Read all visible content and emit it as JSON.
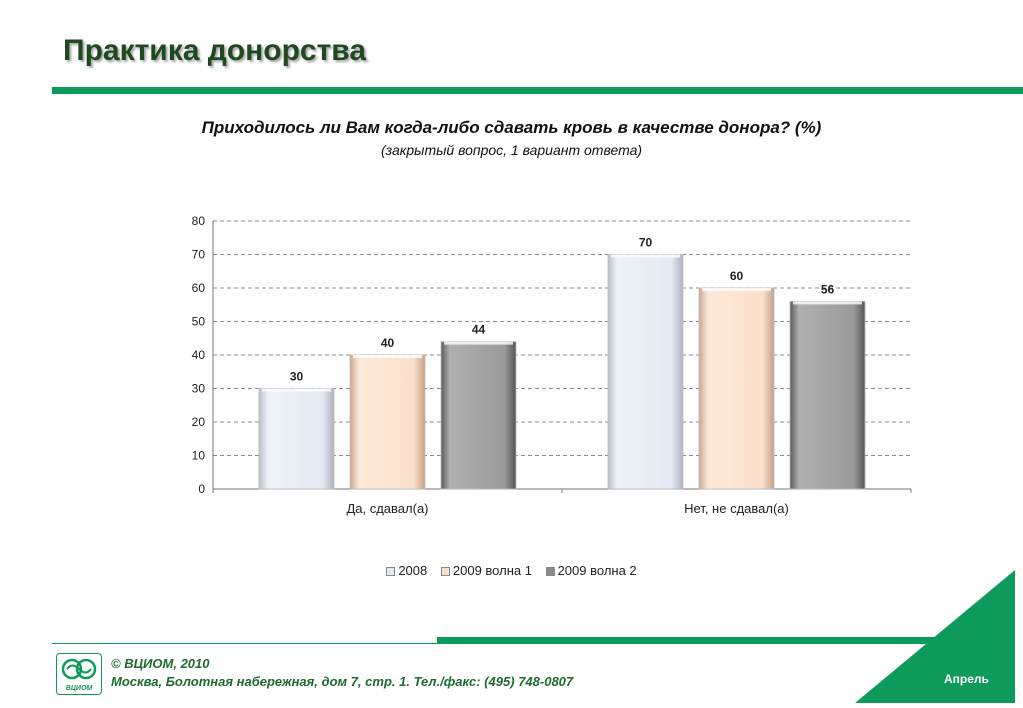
{
  "header": {
    "title": "Практика донорства"
  },
  "question": {
    "text": "Приходилось ли Вам когда-либо сдавать кровь в качестве донора? (%)",
    "note": "(закрытый вопрос, 1 вариант ответа)"
  },
  "chart_data": {
    "type": "bar",
    "title": "Приходилось ли Вам когда-либо сдавать кровь в качестве донора? (%)",
    "subtitle": "(закрытый вопрос, 1 вариант ответа)",
    "categories": [
      "Да, сдавал(а)",
      "Нет, не сдавал(а)"
    ],
    "series": [
      {
        "name": "2008",
        "values": [
          30,
          70
        ],
        "color": "#e2e9f3"
      },
      {
        "name": "2009 волна 1",
        "values": [
          40,
          60
        ],
        "color": "#fbe0cb"
      },
      {
        "name": "2009 волна 2",
        "values": [
          44,
          56
        ],
        "color": "#9a9a9a"
      }
    ],
    "yticks": [
      "0",
      "10",
      "20",
      "30",
      "40",
      "50",
      "60",
      "70",
      "80"
    ],
    "ylim": [
      0,
      80
    ],
    "grid": true,
    "legend_position": "bottom",
    "data_labels": true
  },
  "footer": {
    "copyright": "© ВЦИОМ, 2010",
    "address": "Москва, Болотная набережная, дом 7, стр. 1.  Тел./факс: (495) 748-0807",
    "month": "Апрель",
    "logo_text": "ВЦИОМ"
  },
  "colors": {
    "brand_green": "#0e9a5a",
    "title_text": "#1f4a1f"
  }
}
